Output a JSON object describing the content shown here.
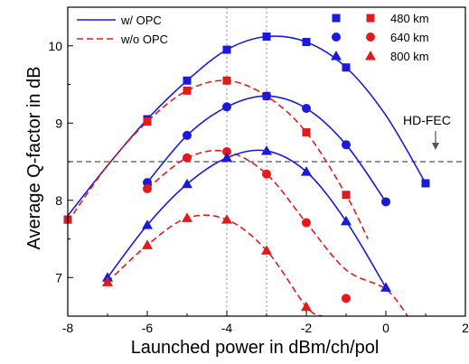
{
  "chart_data": {
    "type": "line",
    "title": "",
    "xlabel": "Launched power in dBm/ch/pol",
    "ylabel": "Average Q-factor in dB",
    "xlim": [
      -8,
      2
    ],
    "ylim": [
      6.5,
      10.5
    ],
    "xticks": [
      -8,
      -6,
      -4,
      -2,
      0,
      2
    ],
    "yticks": [
      7,
      8,
      9,
      10
    ],
    "grid": false,
    "colors": {
      "opc": "#1a1adc",
      "no_opc": "#e21a1a",
      "ref": "#555555"
    },
    "reference_lines": {
      "horizontal": {
        "y": 8.5,
        "label": "HD-FEC"
      },
      "vertical": [
        -4,
        -3
      ]
    },
    "legend_lines": [
      {
        "label": "w/ OPC",
        "style": "solid",
        "color": "#1a1adc"
      },
      {
        "label": "w/o OPC",
        "style": "dashed",
        "color": "#e21a1a"
      }
    ],
    "legend_markers": [
      {
        "label": "480 km",
        "marker": "square"
      },
      {
        "label": "640 km",
        "marker": "circle"
      },
      {
        "label": "800 km",
        "marker": "triangle"
      }
    ],
    "series": [
      {
        "opc": true,
        "distance": "480 km",
        "marker": "square",
        "color": "#1a1adc",
        "x": [
          -8,
          -6,
          -5,
          -4,
          -3,
          -2,
          -1,
          1
        ],
        "y": [
          7.75,
          9.05,
          9.55,
          9.95,
          10.12,
          10.05,
          9.72,
          8.22
        ]
      },
      {
        "opc": false,
        "distance": "480 km",
        "marker": "square",
        "color": "#e21a1a",
        "x": [
          -8,
          -6,
          -5,
          -4,
          -3,
          -2,
          -1
        ],
        "y": [
          7.75,
          9.02,
          9.42,
          9.55,
          9.35,
          8.88,
          8.07
        ]
      },
      {
        "opc": true,
        "distance": "640 km",
        "marker": "circle",
        "color": "#1a1adc",
        "x": [
          -6,
          -5,
          -4,
          -3,
          -2,
          -1,
          0
        ],
        "y": [
          8.23,
          8.84,
          9.21,
          9.35,
          9.19,
          8.72,
          7.98
        ]
      },
      {
        "opc": false,
        "distance": "640 km",
        "marker": "circle",
        "color": "#e21a1a",
        "x": [
          -6,
          -5,
          -4,
          -3,
          -2,
          -1
        ],
        "y": [
          8.15,
          8.55,
          8.63,
          8.34,
          7.71,
          6.73
        ]
      },
      {
        "opc": true,
        "distance": "800 km",
        "marker": "triangle",
        "color": "#1a1adc",
        "x": [
          -7,
          -6,
          -5,
          -4,
          -3,
          -2,
          -1,
          0
        ],
        "y": [
          7.0,
          7.68,
          8.21,
          8.55,
          8.64,
          8.37,
          7.73,
          6.87
        ]
      },
      {
        "opc": false,
        "distance": "800 km",
        "marker": "triangle",
        "color": "#e21a1a",
        "x": [
          -7,
          -6,
          -5,
          -4,
          -3,
          -2
        ],
        "y": [
          6.94,
          7.42,
          7.77,
          7.75,
          7.35,
          6.62
        ]
      }
    ],
    "fits": [
      {
        "color": "#1a1adc",
        "style": "solid",
        "x": [
          -8,
          -7,
          -6,
          -5,
          -4,
          -3,
          -2,
          -1,
          0,
          1
        ],
        "y": [
          7.8,
          8.45,
          9.05,
          9.55,
          9.95,
          10.12,
          10.05,
          9.72,
          9.1,
          8.22
        ]
      },
      {
        "color": "#e21a1a",
        "style": "dashed",
        "x": [
          -8,
          -7,
          -6,
          -5,
          -4,
          -3,
          -2,
          -1,
          -0.45
        ],
        "y": [
          7.72,
          8.45,
          9.02,
          9.42,
          9.55,
          9.35,
          8.88,
          8.07,
          7.5
        ]
      },
      {
        "color": "#1a1adc",
        "style": "solid",
        "x": [
          -6,
          -5,
          -4,
          -3,
          -2,
          -1,
          0
        ],
        "y": [
          8.23,
          8.84,
          9.21,
          9.35,
          9.19,
          8.72,
          7.98
        ]
      },
      {
        "color": "#e21a1a",
        "style": "dashed",
        "x": [
          -6,
          -5,
          -4,
          -3,
          -2,
          -1,
          0,
          0.55
        ],
        "y": [
          8.15,
          8.55,
          8.63,
          8.34,
          7.71,
          7.1,
          6.85,
          6.5
        ]
      },
      {
        "color": "#1a1adc",
        "style": "solid",
        "x": [
          -7,
          -6,
          -5,
          -4,
          -3,
          -2,
          -1,
          0
        ],
        "y": [
          7.0,
          7.68,
          8.21,
          8.55,
          8.64,
          8.37,
          7.73,
          6.87
        ]
      },
      {
        "color": "#e21a1a",
        "style": "dashed",
        "x": [
          -7,
          -6,
          -5,
          -4,
          -3,
          -2,
          -1.6
        ],
        "y": [
          6.94,
          7.42,
          7.77,
          7.75,
          7.35,
          6.62,
          6.5
        ]
      }
    ]
  }
}
